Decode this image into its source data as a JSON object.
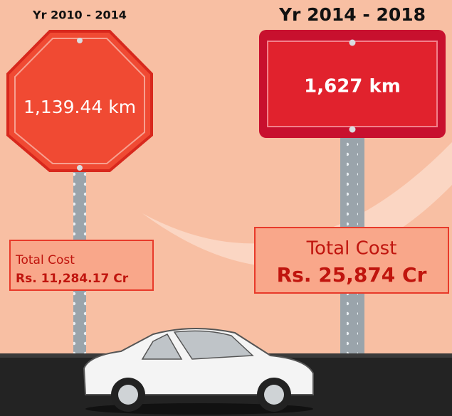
{
  "signs": [
    {
      "period": "Yr 2010 - 2014",
      "distance": "1,139.44 km",
      "cost_label": "Total Cost",
      "cost": "Rs. 11,284.17 Cr"
    },
    {
      "period": "Yr 2014 - 2018",
      "distance": "1,627 km",
      "cost_label": "Total Cost",
      "cost": "Rs. 25,874 Cr"
    }
  ]
}
